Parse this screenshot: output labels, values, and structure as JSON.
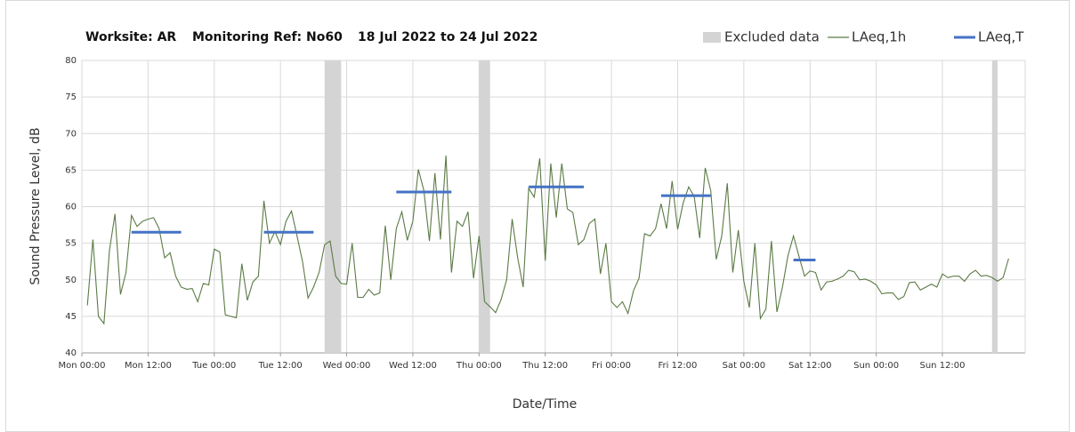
{
  "chart_data": {
    "type": "line",
    "title_parts": [
      "Worksite: AR",
      "Monitoring Ref: No60",
      "18 Jul 2022 to 24 Jul 2022"
    ],
    "x_label": "Date/Time",
    "y_label": "Sound Pressure Level, dB",
    "xlim": [
      0,
      171
    ],
    "xticks": [
      {
        "value": 0,
        "label": "Mon 00:00"
      },
      {
        "value": 12,
        "label": "Mon 12:00"
      },
      {
        "value": 24,
        "label": "Tue 00:00"
      },
      {
        "value": 36,
        "label": "Tue 12:00"
      },
      {
        "value": 48,
        "label": "Wed 00:00"
      },
      {
        "value": 60,
        "label": "Wed 12:00"
      },
      {
        "value": 72,
        "label": "Thu 00:00"
      },
      {
        "value": 84,
        "label": "Thu 12:00"
      },
      {
        "value": 96,
        "label": "Fri 00:00"
      },
      {
        "value": 108,
        "label": "Fri 12:00"
      },
      {
        "value": 120,
        "label": "Sat 00:00"
      },
      {
        "value": 132,
        "label": "Sat 12:00"
      },
      {
        "value": 144,
        "label": "Sun 00:00"
      },
      {
        "value": 156,
        "label": "Sun 12:00"
      }
    ],
    "ylim": [
      40,
      80
    ],
    "yticks": [
      40,
      45,
      50,
      55,
      60,
      65,
      70,
      75,
      80
    ],
    "grid": true,
    "legend_position": "top-right",
    "excluded": {
      "name": "Excluded data",
      "color": "#d4d4d4",
      "ranges": [
        [
          44,
          47
        ],
        [
          72,
          74
        ],
        [
          165,
          166
        ]
      ]
    },
    "series": [
      {
        "name": "LAeq,1h",
        "color": "#5b7a45",
        "x": [
          1,
          2,
          3,
          4,
          5,
          6,
          7,
          8,
          9,
          10,
          11,
          12,
          13,
          14,
          15,
          16,
          17,
          18,
          19,
          20,
          21,
          22,
          23,
          24,
          25,
          26,
          27,
          28,
          29,
          30,
          31,
          32,
          33,
          34,
          35,
          36,
          37,
          38,
          39,
          40,
          41,
          42,
          43,
          44,
          45,
          46,
          47,
          48,
          49,
          50,
          51,
          52,
          53,
          54,
          55,
          56,
          57,
          58,
          59,
          60,
          61,
          62,
          63,
          64,
          65,
          66,
          67,
          68,
          69,
          70,
          71,
          72,
          73,
          74,
          75,
          76,
          77,
          78,
          79,
          80,
          81,
          82,
          83,
          84,
          85,
          86,
          87,
          88,
          89,
          90,
          91,
          92,
          93,
          94,
          95,
          96,
          97,
          98,
          99,
          100,
          101,
          102,
          103,
          104,
          105,
          106,
          107,
          108,
          109,
          110,
          111,
          112,
          113,
          114,
          115,
          116,
          117,
          118,
          119,
          120,
          121,
          122,
          123,
          124,
          125,
          126,
          127,
          128,
          129,
          130,
          131,
          132,
          133,
          134,
          135,
          136,
          137,
          138,
          139,
          140,
          141,
          142,
          143,
          144,
          145,
          146,
          147,
          148,
          149,
          150,
          151,
          152,
          153,
          154,
          155,
          156,
          157,
          158,
          159,
          160,
          161,
          162,
          163,
          164,
          165,
          166,
          167,
          168
        ],
        "values": [
          46.5,
          55.5,
          45,
          44,
          54,
          59,
          48,
          51,
          58.8,
          57.3,
          58,
          58.3,
          58.5,
          57,
          53,
          53.7,
          50.5,
          49,
          48.7,
          48.8,
          47,
          49.5,
          49.3,
          54.2,
          53.8,
          45.2,
          45,
          44.8,
          52.2,
          47.2,
          49.7,
          50.5,
          60.8,
          55,
          56.6,
          54.8,
          58,
          59.4,
          56,
          52.5,
          47.5,
          49,
          51,
          54.8,
          55.3,
          50.5,
          49.5,
          49.4,
          55,
          47.6,
          47.6,
          48.7,
          47.9,
          48.2,
          57.4,
          50,
          57,
          59.3,
          55.4,
          58,
          65.1,
          62.2,
          55.3,
          64.6,
          55.5,
          67,
          51,
          58,
          57.3,
          59.3,
          50.2,
          56,
          47,
          46.3,
          45.5,
          47.3,
          50,
          58.3,
          53,
          49,
          62.5,
          61.3,
          66.6,
          52.6,
          65.9,
          58.5,
          65.9,
          59.7,
          59.2,
          54.8,
          55.5,
          57.7,
          58.3,
          50.8,
          55,
          47,
          46.2,
          47,
          45.4,
          48.5,
          50.2,
          56.3,
          56,
          57,
          60.4,
          57,
          63.5,
          56.9,
          60.5,
          62.7,
          61.4,
          55.7,
          65.3,
          62.2,
          52.8,
          56,
          63.2,
          51,
          56.8,
          49.8,
          46.2,
          55,
          44.7,
          46,
          55.3,
          45.6,
          49,
          53.3,
          56,
          53.2,
          50.5,
          51.2,
          51,
          48.6,
          49.7,
          49.8,
          50.1,
          50.5,
          51.3,
          51.1,
          50,
          50.1,
          49.8,
          49.3,
          48.1,
          48.2,
          48.2,
          47.3,
          47.7,
          49.6,
          49.7,
          48.6,
          49,
          49.4,
          49,
          50.8,
          50.3,
          50.5,
          50.5,
          49.8,
          50.8,
          51.3,
          50.5,
          50.6,
          50.3,
          49.8,
          50.3,
          52.9
        ]
      },
      {
        "name": "LAeq,T",
        "color": "#4472c4",
        "segments": [
          {
            "start": 9,
            "end": 18,
            "value": 56.5
          },
          {
            "start": 33,
            "end": 42,
            "value": 56.5
          },
          {
            "start": 57,
            "end": 67,
            "value": 62
          },
          {
            "start": 81,
            "end": 91,
            "value": 62.7
          },
          {
            "start": 105,
            "end": 114,
            "value": 61.5
          },
          {
            "start": 129,
            "end": 133,
            "value": 52.7
          }
        ]
      }
    ]
  }
}
